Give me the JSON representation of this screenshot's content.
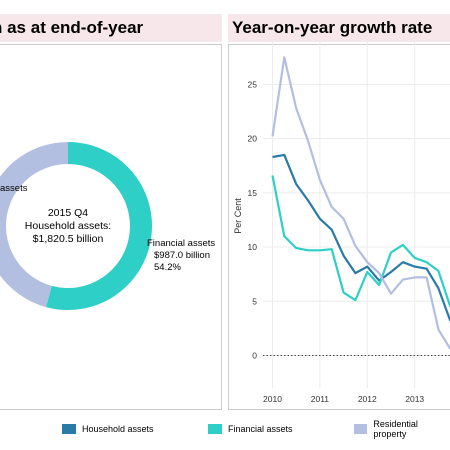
{
  "titles": {
    "left": "n as at end-of-year",
    "right": "Year-on-year growth rate"
  },
  "colors": {
    "household": "#2a7aa8",
    "financial": "#2dcfc6",
    "residential": "#b3bfe0",
    "panel_title_bg": "#f7e7ea"
  },
  "legend": [
    {
      "label": "Household assets",
      "color": "#2a7aa8"
    },
    {
      "label": "Financial assets",
      "color": "#2dcfc6"
    },
    {
      "label": "Residential property",
      "color": "#b3bfe0"
    }
  ],
  "chart_data": [
    {
      "type": "pie",
      "donut": true,
      "center_text": [
        "2015 Q4",
        "Household assets:",
        "$1,820.5 billion"
      ],
      "slices": [
        {
          "name": "Financial assets",
          "value": 987.0,
          "percent": 54.2,
          "label_lines": [
            "Financial assets",
            "$987.0 billion",
            "54.2%"
          ],
          "color": "#2dcfc6"
        },
        {
          "name": "Residential property",
          "value": 833.5,
          "percent": 45.8,
          "label_lines": [
            "assets"
          ],
          "color": "#b3bfe0"
        }
      ]
    },
    {
      "type": "line",
      "title": "Year-on-year growth rate",
      "ylabel": "Per Cent",
      "ylim": [
        -3,
        29
      ],
      "xlim": [
        2009.8,
        2013.85
      ],
      "y_ticks": [
        0,
        5,
        10,
        15,
        20,
        25
      ],
      "x_ticks": [
        2010,
        2011,
        2012,
        2013
      ],
      "x_tick_labels": [
        "2010",
        "2011",
        "2012",
        "2013"
      ],
      "grid": true,
      "x": [
        2010.0,
        2010.25,
        2010.5,
        2010.75,
        2011.0,
        2011.25,
        2011.5,
        2011.75,
        2012.0,
        2012.25,
        2012.5,
        2012.75,
        2013.0,
        2013.25,
        2013.5,
        2013.75
      ],
      "series": [
        {
          "name": "Household assets",
          "color": "#2a7aa8",
          "values": [
            18.3,
            18.5,
            15.8,
            14.3,
            12.6,
            11.6,
            9.2,
            7.6,
            8.2,
            6.9,
            7.7,
            8.6,
            8.2,
            8.0,
            6.2,
            3.2
          ]
        },
        {
          "name": "Financial assets",
          "color": "#2dcfc6",
          "values": [
            16.6,
            11.0,
            9.9,
            9.7,
            9.7,
            9.8,
            5.8,
            5.1,
            7.7,
            6.5,
            9.5,
            10.2,
            9.0,
            8.6,
            7.8,
            4.5
          ]
        },
        {
          "name": "Residential property",
          "color": "#b3bfe0",
          "values": [
            20.2,
            27.5,
            22.8,
            19.8,
            16.2,
            13.7,
            12.6,
            10.1,
            8.6,
            7.6,
            5.7,
            7.0,
            7.2,
            7.2,
            2.4,
            0.6
          ]
        }
      ]
    }
  ]
}
